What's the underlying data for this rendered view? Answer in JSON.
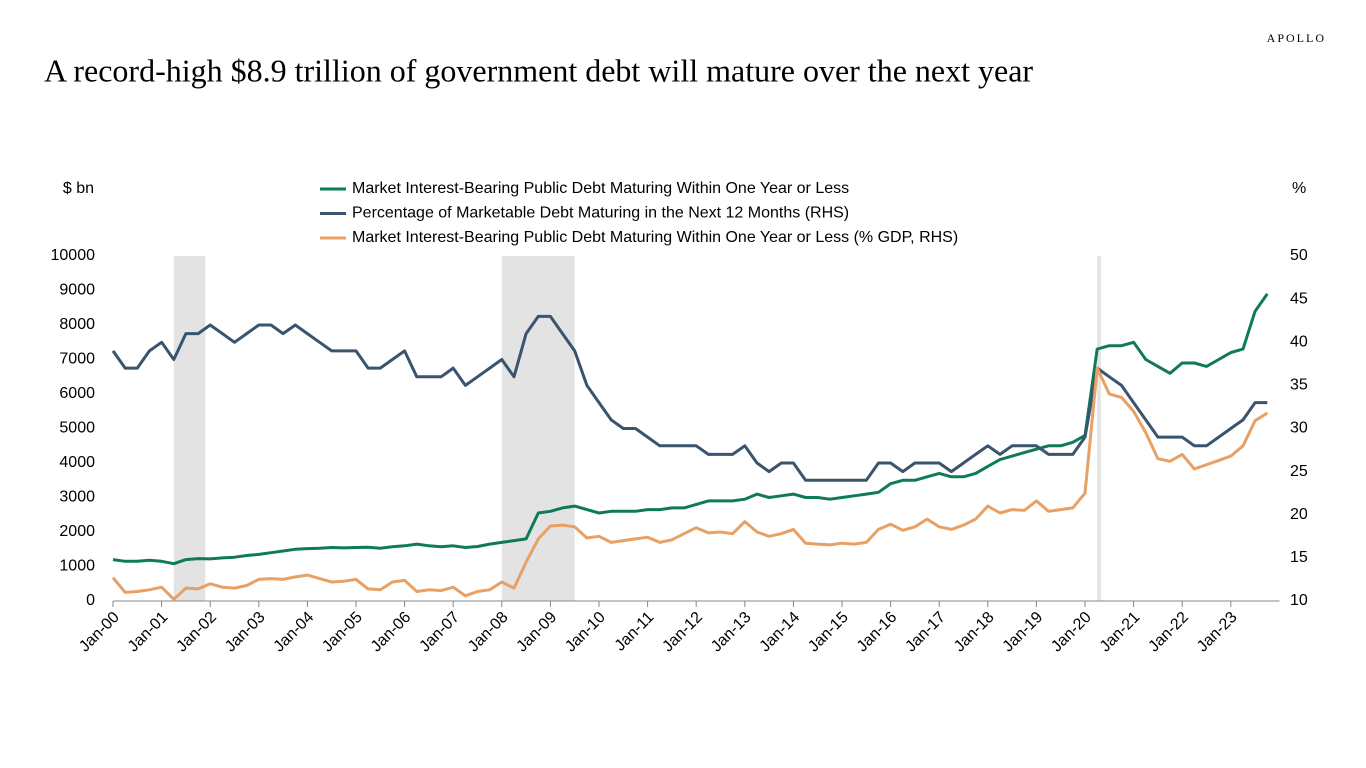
{
  "brand": "APOLLO",
  "chart_data": {
    "type": "line",
    "title": "A record-high $8.9 trillion of government debt will mature over the next year",
    "y_label": "$ bn",
    "y2_label": "%",
    "categories": [
      "Jan-00",
      null,
      null,
      null,
      "Jan-01",
      null,
      null,
      null,
      "Jan-02",
      null,
      null,
      null,
      "Jan-03",
      null,
      null,
      null,
      "Jan-04",
      null,
      null,
      null,
      "Jan-05",
      null,
      null,
      null,
      "Jan-06",
      null,
      null,
      null,
      "Jan-07",
      null,
      null,
      null,
      "Jan-08",
      null,
      null,
      null,
      "Jan-09",
      null,
      null,
      null,
      "Jan-10",
      null,
      null,
      null,
      "Jan-11",
      null,
      null,
      null,
      "Jan-12",
      null,
      null,
      null,
      "Jan-13",
      null,
      null,
      null,
      "Jan-14",
      null,
      null,
      null,
      "Jan-15",
      null,
      null,
      null,
      "Jan-16",
      null,
      null,
      null,
      "Jan-17",
      null,
      null,
      null,
      "Jan-18",
      null,
      null,
      null,
      "Jan-19",
      null,
      null,
      null,
      "Jan-20",
      null,
      null,
      null,
      "Jan-21",
      null,
      null,
      null,
      "Jan-22",
      null,
      null,
      null,
      "Jan-23",
      null,
      null,
      null
    ],
    "shaded_periods": [
      [
        5,
        7.6
      ],
      [
        32,
        38
      ],
      [
        81,
        81.3
      ]
    ],
    "series": [
      {
        "name": "Market Interest-Bearing Public Debt Maturing Within One Year or Less",
        "color": "#0e7a5a",
        "axis": "y",
        "values": [
          1200,
          1150,
          1150,
          1180,
          1150,
          1080,
          1200,
          1230,
          1220,
          1250,
          1270,
          1320,
          1350,
          1400,
          1450,
          1500,
          1520,
          1530,
          1550,
          1540,
          1550,
          1560,
          1530,
          1570,
          1600,
          1650,
          1600,
          1570,
          1600,
          1550,
          1580,
          1650,
          1700,
          1750,
          1800,
          2550,
          2600,
          2700,
          2750,
          2650,
          2550,
          2600,
          2600,
          2600,
          2650,
          2650,
          2700,
          2700,
          2800,
          2900,
          2900,
          2900,
          2950,
          3100,
          3000,
          3050,
          3100,
          3000,
          3000,
          2950,
          3000,
          3050,
          3100,
          3150,
          3400,
          3500,
          3500,
          3600,
          3700,
          3600,
          3600,
          3700,
          3900,
          4100,
          4200,
          4300,
          4400,
          4500,
          4500,
          4600,
          4800,
          7300,
          7400,
          7400,
          7500,
          7000,
          6800,
          6600,
          6900,
          6900,
          6800,
          7000,
          7200,
          7300,
          8400,
          8900
        ]
      },
      {
        "name": "Percentage of Marketable Debt Maturing in the Next 12 Months (RHS)",
        "color": "#3a5470",
        "axis": "y2",
        "values": [
          39,
          37,
          37,
          39,
          40,
          38,
          41,
          41,
          42,
          41,
          40,
          41,
          42,
          42,
          41,
          42,
          41,
          40,
          39,
          39,
          39,
          37,
          37,
          38,
          39,
          36,
          36,
          36,
          37,
          35,
          36,
          37,
          38,
          36,
          41,
          43,
          43,
          41,
          39,
          35,
          33,
          31,
          30,
          30,
          29,
          28,
          28,
          28,
          28,
          27,
          27,
          27,
          28,
          26,
          25,
          26,
          26,
          24,
          24,
          24,
          24,
          24,
          24,
          26,
          26,
          25,
          26,
          26,
          26,
          25,
          26,
          27,
          28,
          27,
          28,
          28,
          28,
          27,
          27,
          27,
          29,
          37,
          36,
          35,
          33,
          31,
          29,
          29,
          29,
          28,
          28,
          29,
          30,
          31,
          33,
          33
        ]
      },
      {
        "name": "Market Interest-Bearing Public Debt Maturing Within One Year or Less (% GDP, RHS)",
        "color": "#e8a064",
        "axis": "y2",
        "values": [
          12.7,
          11,
          11.1,
          11.3,
          11.6,
          10.2,
          11.5,
          11.4,
          12,
          11.6,
          11.5,
          11.8,
          12.5,
          12.6,
          12.5,
          12.8,
          13,
          12.6,
          12.2,
          12.3,
          12.5,
          11.4,
          11.3,
          12.2,
          12.4,
          11.1,
          11.3,
          11.2,
          11.6,
          10.6,
          11.1,
          11.3,
          12.2,
          11.5,
          14.5,
          17.2,
          18.7,
          18.8,
          18.6,
          17.3,
          17.5,
          16.8,
          17,
          17.2,
          17.4,
          16.8,
          17.1,
          17.8,
          18.5,
          17.9,
          18,
          17.8,
          19.2,
          18,
          17.5,
          17.8,
          18.3,
          16.7,
          16.6,
          16.5,
          16.7,
          16.6,
          16.8,
          18.3,
          18.9,
          18.2,
          18.6,
          19.5,
          18.6,
          18.3,
          18.8,
          19.5,
          21,
          20.2,
          20.6,
          20.5,
          21.6,
          20.4,
          20.6,
          20.8,
          22.5,
          37,
          34,
          33.6,
          32,
          29.5,
          26.5,
          26.2,
          27,
          25.3,
          25.8,
          26.3,
          26.8,
          28,
          30.9,
          31.8
        ]
      }
    ],
    "ylim": [
      0,
      10000
    ],
    "yticks": [
      0,
      1000,
      2000,
      3000,
      4000,
      5000,
      6000,
      7000,
      8000,
      9000,
      10000
    ],
    "y2lim": [
      10,
      50
    ],
    "y2ticks": [
      10,
      15,
      20,
      25,
      30,
      35,
      40,
      45,
      50
    ],
    "shade_color": "#e3e3e3"
  }
}
